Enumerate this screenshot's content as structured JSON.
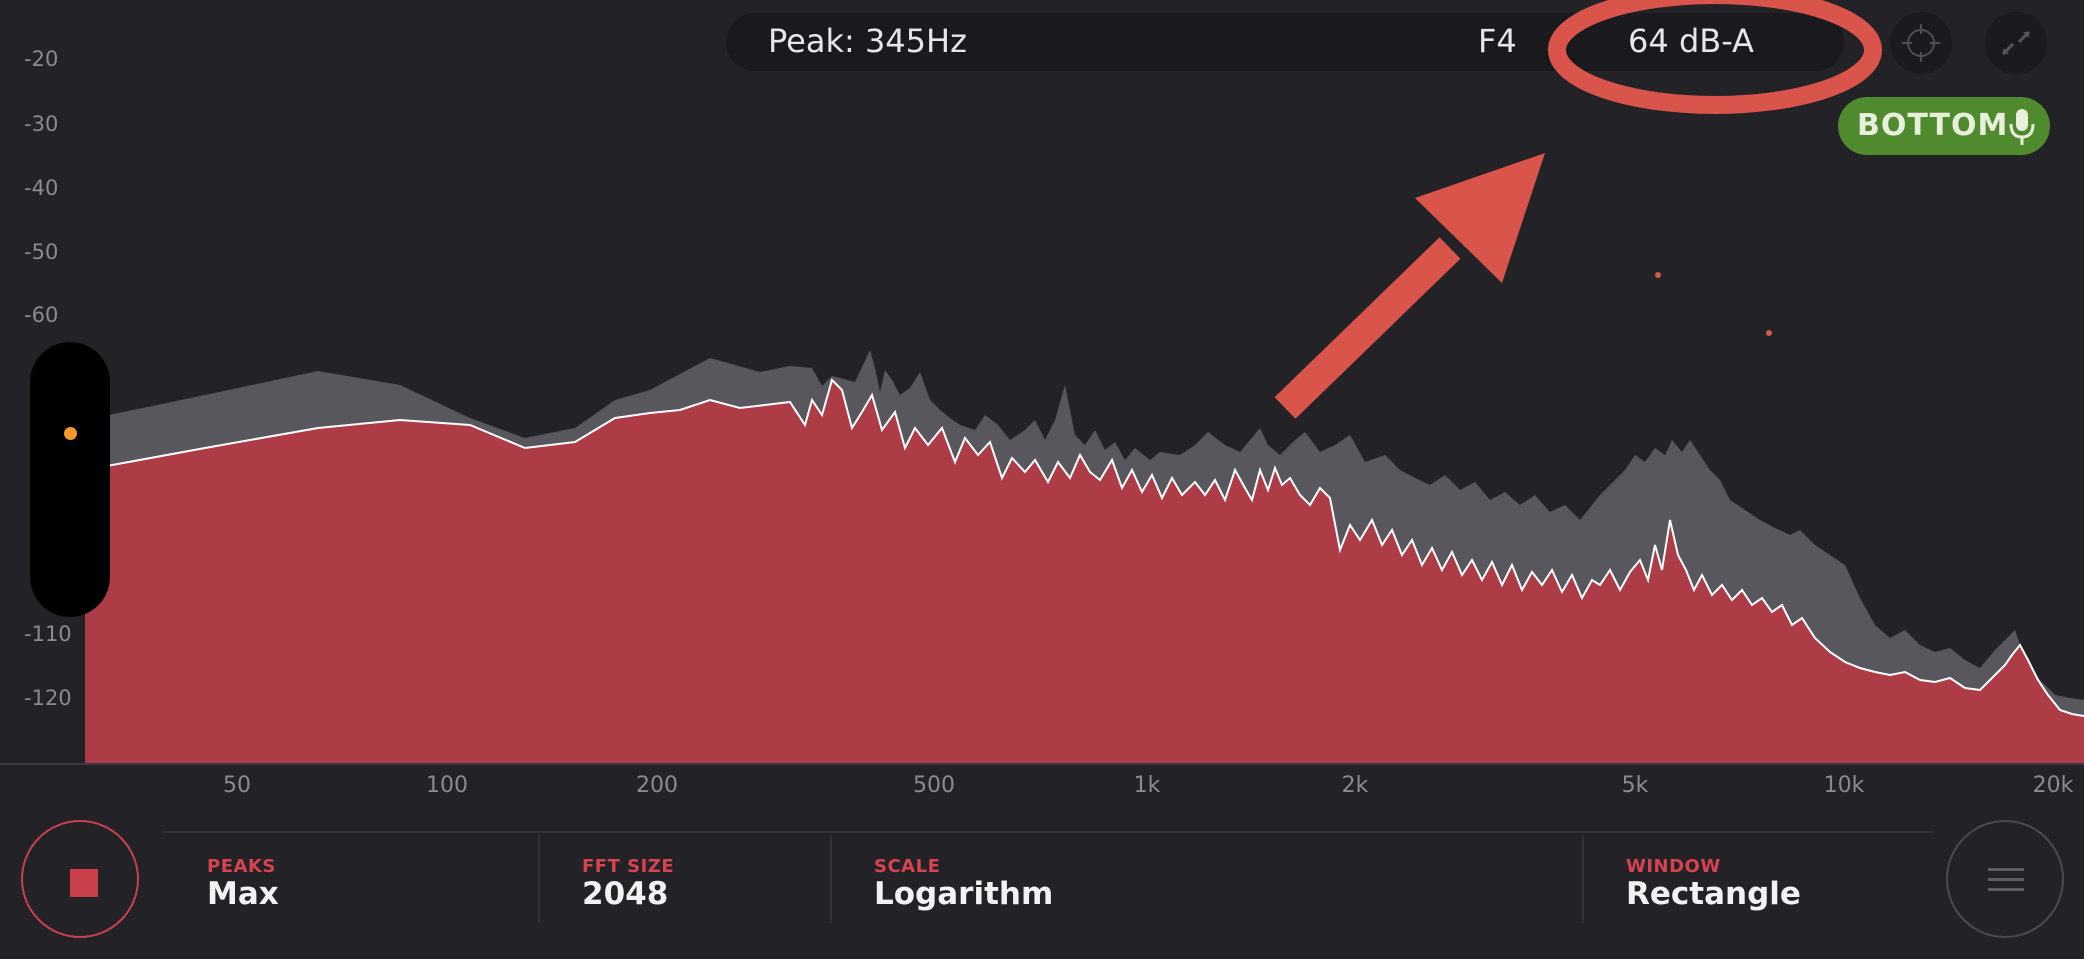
{
  "top_bar": {
    "peak_label": "Peak: 345Hz",
    "note": "F4",
    "level": "64 dB-A",
    "target_icon": "crosshair-icon",
    "fullscreen_icon": "expand-icon"
  },
  "mic_toggle": {
    "label": "BOTTOM",
    "icon": "microphone-icon",
    "color": "#4f8a2f"
  },
  "y_axis": {
    "ticks": [
      "-20",
      "-30",
      "-40",
      "-50",
      "-60",
      "-110",
      "-120"
    ]
  },
  "x_axis": {
    "ticks": [
      "50",
      "100",
      "200",
      "500",
      "1k",
      "2k",
      "5k",
      "10k",
      "20k"
    ]
  },
  "annotation": {
    "color": "#d9544a",
    "shape": "ellipse-and-arrow"
  },
  "controls": [
    {
      "caption": "PEAKS",
      "value": "Max"
    },
    {
      "caption": "FFT SIZE",
      "value": "2048"
    },
    {
      "caption": "SCALE",
      "value": "Logarithm"
    },
    {
      "caption": "WINDOW",
      "value": "Rectangle"
    }
  ],
  "buttons": {
    "record_icon": "stop-icon",
    "menu_icon": "hamburger-icon"
  },
  "colors": {
    "accent_red": "#c9404b",
    "spectrum_fill": "#ad3c47",
    "peak_fill": "#59575e",
    "background": "#232227"
  }
}
